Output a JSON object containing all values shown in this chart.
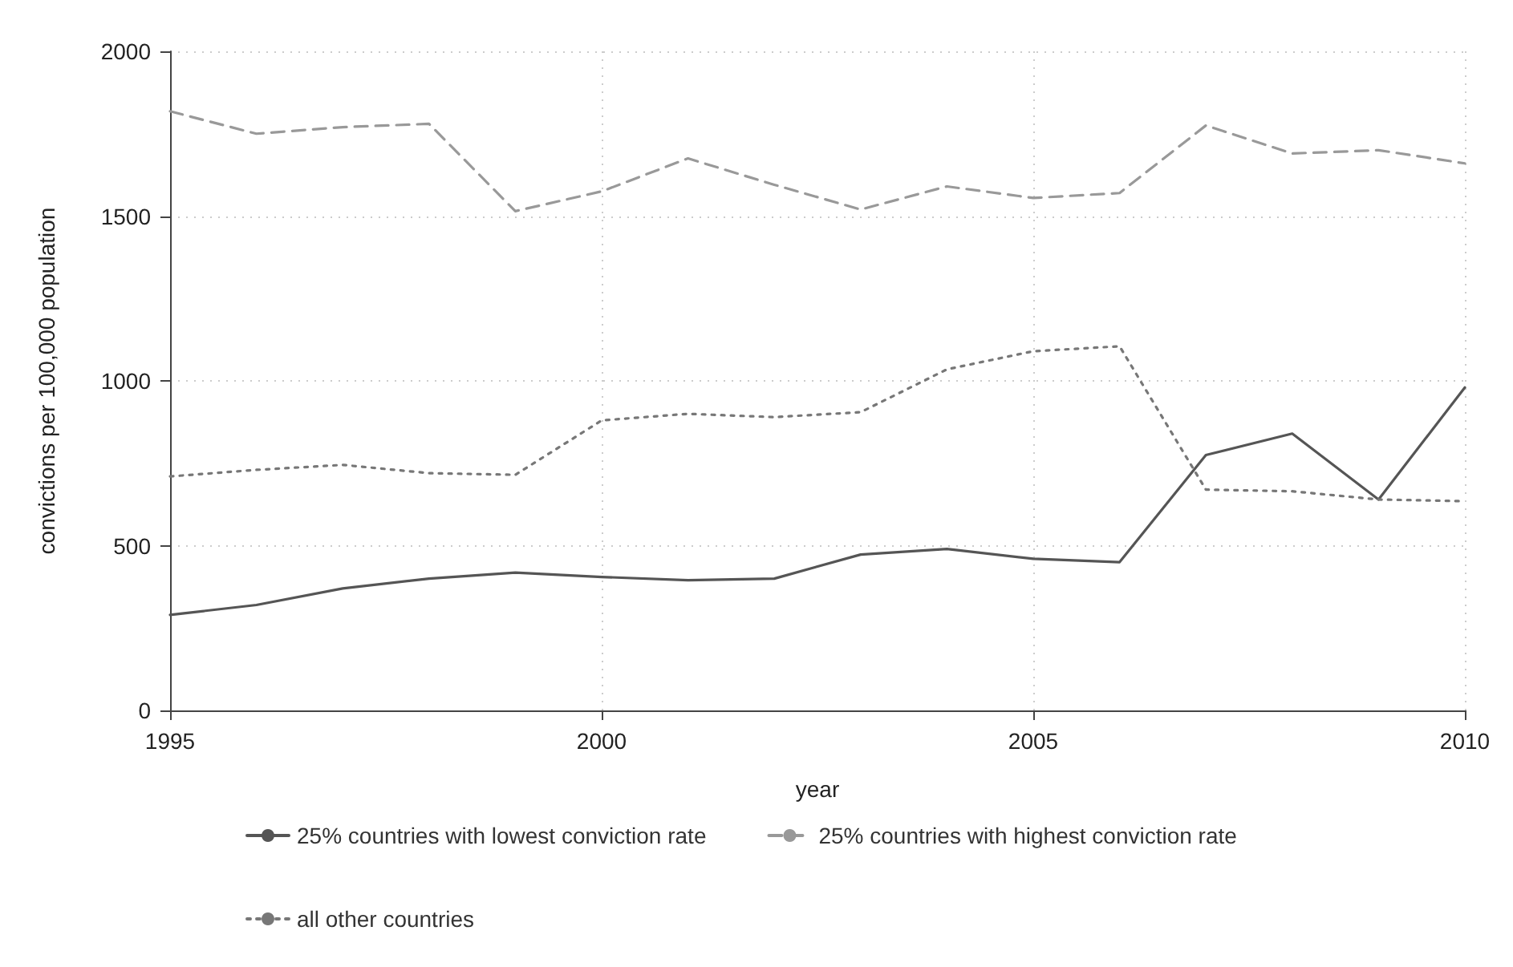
{
  "chart_data": {
    "type": "line",
    "xlabel": "year",
    "ylabel": "convictions per 100,000 population",
    "x": [
      1995,
      1996,
      1997,
      1998,
      1999,
      2000,
      2001,
      2002,
      2003,
      2004,
      2005,
      2006,
      2007,
      2008,
      2009,
      2010
    ],
    "series": [
      {
        "name": "25% countries with lowest conviction rate",
        "color": "#555555",
        "line_style": "solid",
        "values": [
          290,
          320,
          370,
          400,
          418,
          405,
          395,
          400,
          473,
          490,
          460,
          450,
          775,
          840,
          640,
          980
        ]
      },
      {
        "name": "25% countries with highest conviction rate",
        "color": "#999999",
        "line_style": "dashed",
        "values": [
          1818,
          1750,
          1770,
          1780,
          1515,
          1575,
          1675,
          1595,
          1520,
          1590,
          1555,
          1570,
          1775,
          1690,
          1700,
          1660
        ]
      },
      {
        "name": "all other countries",
        "color": "#777777",
        "line_style": "dotted",
        "values": [
          710,
          730,
          745,
          720,
          715,
          880,
          900,
          890,
          905,
          1035,
          1090,
          1105,
          670,
          665,
          640,
          635
        ]
      }
    ],
    "xlim": [
      1995,
      2010
    ],
    "xticks": [
      1995,
      2000,
      2005,
      2010
    ],
    "ylim": [
      0,
      2000
    ],
    "yticks": [
      0,
      500,
      1000,
      1500,
      2000
    ],
    "grid": true,
    "legend": "bottom",
    "marker": "none"
  }
}
